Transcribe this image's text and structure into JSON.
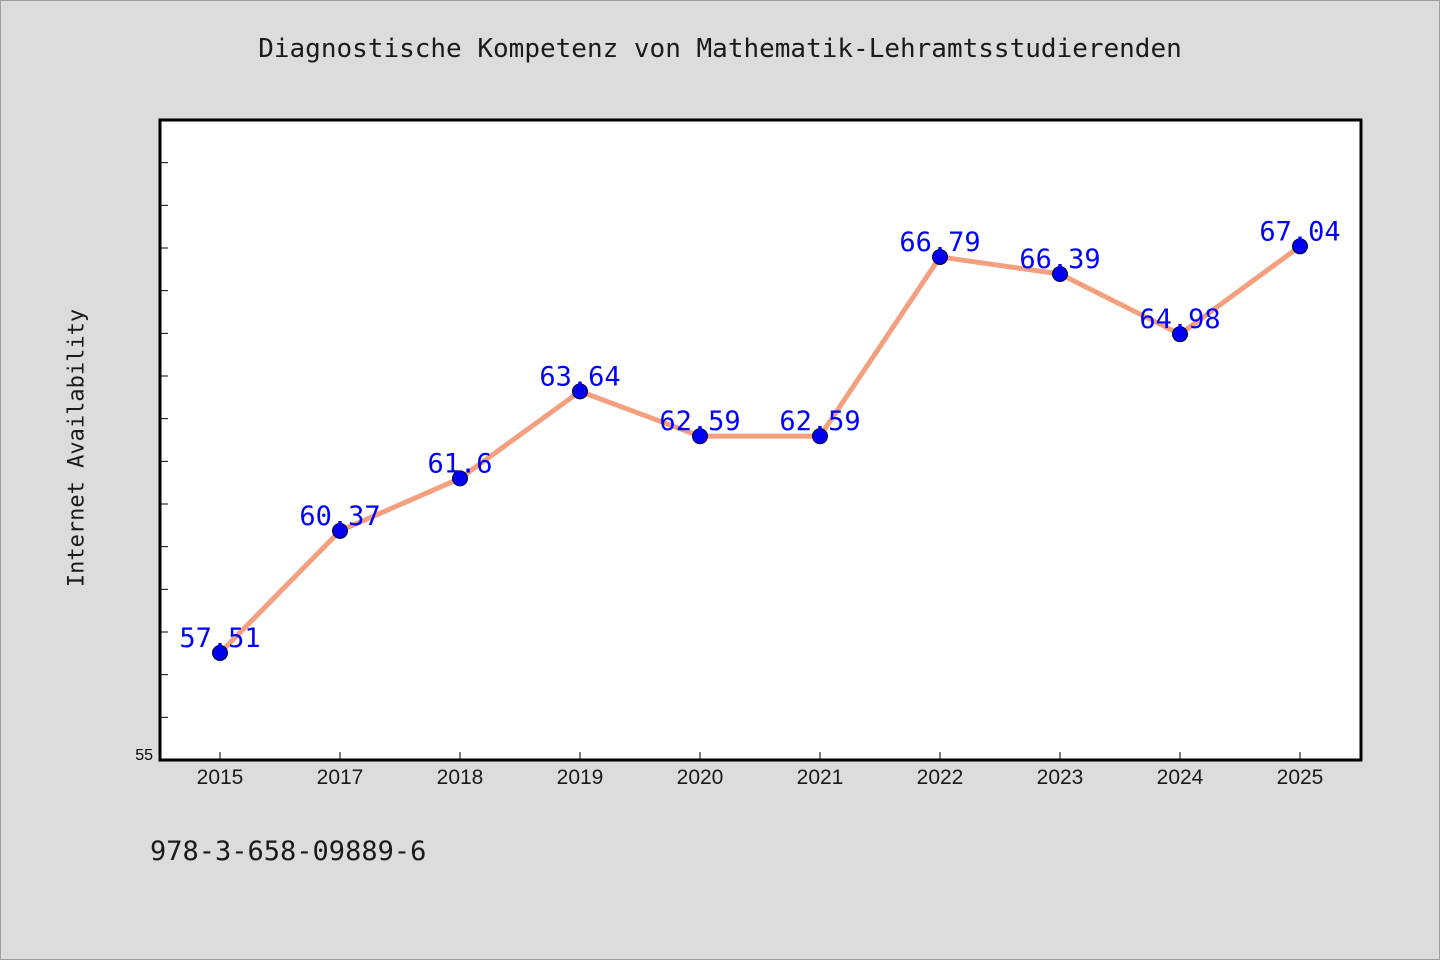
{
  "footer": {
    "isbn": "978-3-658-09889-6"
  },
  "colors": {
    "background": "#dcdcdc",
    "plot_background": "#ffffff",
    "line": "#f4a07f",
    "marker": "#0000ee",
    "data_label": "#0000ff"
  },
  "chart_data": {
    "type": "line",
    "title": "Diagnostische Kompetenz von Mathematik-Lehramtsstudierenden",
    "xlabel": "",
    "ylabel": "Internet Availability",
    "categories": [
      "2015",
      "2017",
      "2018",
      "2019",
      "2020",
      "2021",
      "2022",
      "2023",
      "2024",
      "2025"
    ],
    "values": [
      57.51,
      60.37,
      61.6,
      63.64,
      62.59,
      62.59,
      66.79,
      66.39,
      64.98,
      67.04
    ],
    "data_labels": [
      "57.51",
      "60.37",
      "61.6",
      "63.64",
      "62.59",
      "62.59",
      "66.79",
      "66.39",
      "64.98",
      "67.04"
    ],
    "y_tick_labels": [
      "55"
    ],
    "ylim": [
      55,
      70
    ],
    "minor_tick_step": 1,
    "grid": false,
    "legend": "none"
  }
}
